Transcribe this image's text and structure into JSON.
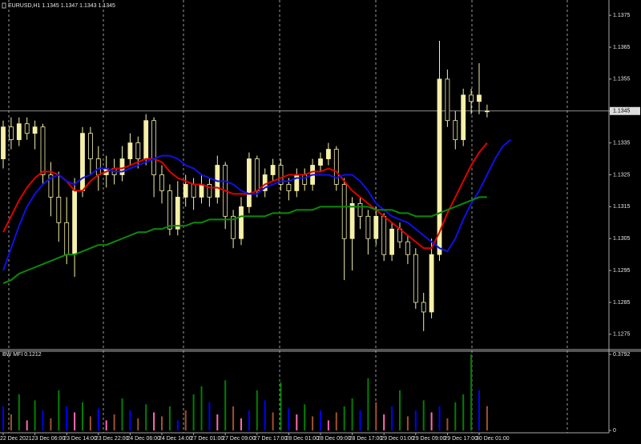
{
  "chart_data": [
    {
      "type": "candlestick",
      "title": "EURUSD,H1  1.1345 1.1347 1.1343 1.1345",
      "categories": [
        "22 Dec 2021",
        null,
        null,
        null,
        "23 Dec 06:00",
        null,
        null,
        null,
        "23 Dec 14:00",
        null,
        null,
        null,
        "23 Dec 22:00",
        null,
        null,
        null,
        "24 Dec 06:00",
        null,
        null,
        null,
        "24 Dec 14:00",
        null,
        null,
        null,
        "27 Dec 01:00",
        null,
        null,
        null,
        "27 Dec 09:00",
        null,
        null,
        null,
        "27 Dec 17:00",
        null,
        null,
        null,
        "28 Dec 01:00",
        null,
        null,
        null,
        "28 Dec 09:00",
        null,
        null,
        null,
        "28 Dec 17:00",
        null,
        null,
        null,
        "29 Dec 01:00",
        null,
        null,
        null,
        "29 Dec 09:00",
        null,
        null,
        null,
        "29 Dec 17:00",
        null,
        null,
        null,
        "30 Dec 01:00",
        null,
        null,
        null,
        null
      ],
      "open": [
        1.133,
        1.134,
        1.1336,
        1.1341,
        1.1338,
        1.134,
        1.1325,
        1.1318,
        1.131,
        1.13,
        1.132,
        1.1338,
        1.133,
        1.1325,
        1.1327,
        1.1325,
        1.133,
        1.1335,
        1.133,
        1.1342,
        1.1325,
        1.132,
        1.1308,
        1.1318,
        1.1322,
        1.1318,
        1.1322,
        1.1318,
        1.1328,
        1.1312,
        1.1305,
        1.1315,
        1.133,
        1.132,
        1.1325,
        1.1328,
        1.1322,
        1.132,
        1.1325,
        1.1322,
        1.1328,
        1.133,
        1.1333,
        1.1322,
        1.1305,
        1.1316,
        1.1312,
        1.1305,
        1.1312,
        1.13,
        1.1308,
        1.1304,
        1.13,
        1.1285,
        1.1282,
        1.13,
        1.1355,
        1.1342,
        1.1336,
        1.135,
        1.1348,
        1.1345,
        null,
        null,
        null
      ],
      "high": [
        1.1342,
        1.1343,
        1.1343,
        1.1343,
        1.1342,
        1.1341,
        1.1329,
        1.1326,
        1.1318,
        1.1324,
        1.134,
        1.134,
        1.1334,
        1.1331,
        1.133,
        1.1334,
        1.1338,
        1.1337,
        1.1344,
        1.1343,
        1.1328,
        1.1322,
        1.1323,
        1.1325,
        1.1324,
        1.1325,
        1.1324,
        1.1331,
        1.1329,
        1.1314,
        1.1318,
        1.1332,
        1.1331,
        1.1327,
        1.133,
        1.133,
        1.1324,
        1.1327,
        1.1327,
        1.133,
        1.1332,
        1.1335,
        1.1334,
        1.1324,
        1.1318,
        1.1318,
        1.1314,
        1.1315,
        1.1313,
        1.131,
        1.131,
        1.1306,
        1.1302,
        1.1288,
        1.1305,
        1.1367,
        1.1358,
        1.1345,
        1.1352,
        1.1352,
        1.136,
        1.1347,
        null,
        null,
        null
      ],
      "low": [
        1.1327,
        1.1333,
        1.1334,
        1.1336,
        1.1333,
        1.1322,
        1.1312,
        1.1304,
        1.1297,
        1.1293,
        1.1318,
        1.1325,
        1.132,
        1.1321,
        1.1322,
        1.1323,
        1.1328,
        1.1327,
        1.1328,
        1.1318,
        1.1316,
        1.1306,
        1.1306,
        1.1315,
        1.1314,
        1.1316,
        1.1315,
        1.1316,
        1.1308,
        1.1302,
        1.1303,
        1.1313,
        1.1318,
        1.1318,
        1.1323,
        1.132,
        1.1317,
        1.1318,
        1.132,
        1.132,
        1.1326,
        1.1328,
        1.132,
        1.1292,
        1.1295,
        1.1308,
        1.13,
        1.1303,
        1.1298,
        1.1298,
        1.1302,
        1.1297,
        1.1283,
        1.1276,
        1.128,
        1.1298,
        1.134,
        1.1333,
        1.1334,
        1.1344,
        1.1344,
        1.1343,
        null,
        null,
        null
      ],
      "close": [
        1.134,
        1.1336,
        1.1341,
        1.1338,
        1.134,
        1.1325,
        1.1318,
        1.131,
        1.13,
        1.132,
        1.1338,
        1.133,
        1.1325,
        1.1327,
        1.1325,
        1.133,
        1.1335,
        1.133,
        1.1342,
        1.1325,
        1.132,
        1.1308,
        1.1318,
        1.1322,
        1.1318,
        1.1322,
        1.1318,
        1.1328,
        1.1312,
        1.1305,
        1.1315,
        1.133,
        1.132,
        1.1325,
        1.1328,
        1.1322,
        1.132,
        1.1325,
        1.1322,
        1.1328,
        1.133,
        1.1333,
        1.1322,
        1.1305,
        1.1316,
        1.1312,
        1.1305,
        1.1312,
        1.13,
        1.1308,
        1.1304,
        1.13,
        1.1285,
        1.1282,
        1.13,
        1.1355,
        1.1342,
        1.1336,
        1.135,
        1.1348,
        1.135,
        1.1345,
        null,
        null,
        null
      ],
      "candle_color": "#f6f0a8",
      "lines": [
        {
          "color": "#e00000",
          "values": [
            1.1307,
            1.1312,
            1.1317,
            1.1321,
            1.1324,
            1.1326,
            1.1326,
            1.1325,
            1.1323,
            1.132,
            1.132,
            1.1323,
            1.1325,
            1.1326,
            1.1327,
            1.1327,
            1.1328,
            1.1329,
            1.133,
            1.133,
            1.1329,
            1.1326,
            1.1324,
            1.1323,
            1.1322,
            1.1322,
            1.1321,
            1.1321,
            1.132,
            1.1319,
            1.1319,
            1.1319,
            1.132,
            1.1322,
            1.1323,
            1.1324,
            1.1325,
            1.1325,
            1.1325,
            1.1326,
            1.1326,
            1.1327,
            1.1326,
            1.1323,
            1.132,
            1.1318,
            1.1316,
            1.1314,
            1.1312,
            1.131,
            1.1308,
            1.1306,
            1.1304,
            1.1302,
            1.1302,
            1.1307,
            1.1313,
            1.1318,
            1.1323,
            1.1328,
            1.1332,
            1.1335,
            null,
            null,
            null
          ]
        },
        {
          "color": "#1010e8",
          "values": [
            1.1295,
            1.1302,
            1.1309,
            1.1315,
            1.1319,
            1.1322,
            1.1324,
            1.1325,
            1.1323,
            1.1322,
            1.1324,
            1.1325,
            1.1327,
            1.1327,
            1.1326,
            1.1326,
            1.1327,
            1.1328,
            1.1329,
            1.133,
            1.1331,
            1.1331,
            1.133,
            1.1328,
            1.1327,
            1.1325,
            1.1324,
            1.1323,
            1.1323,
            1.1322,
            1.132,
            1.1319,
            1.1319,
            1.1321,
            1.1322,
            1.1323,
            1.1323,
            1.1324,
            1.1324,
            1.1325,
            1.1325,
            1.1325,
            1.1324,
            1.1325,
            1.1325,
            1.1323,
            1.132,
            1.1316,
            1.1314,
            1.1312,
            1.1311,
            1.131,
            1.1308,
            1.1306,
            1.1304,
            1.1302,
            1.1301,
            1.1305,
            1.1311,
            1.1316,
            1.132,
            1.1325,
            1.133,
            1.1334,
            1.1336
          ]
        },
        {
          "color": "#0a8a0a",
          "values": [
            1.1291,
            1.1292,
            1.1294,
            1.1295,
            1.1296,
            1.1297,
            1.1298,
            1.1299,
            1.13,
            1.13,
            1.1301,
            1.1302,
            1.1303,
            1.1303,
            1.1304,
            1.1305,
            1.1306,
            1.1307,
            1.1307,
            1.1308,
            1.1308,
            1.1309,
            1.1309,
            1.1309,
            1.131,
            1.131,
            1.1311,
            1.1311,
            1.1311,
            1.1311,
            1.1312,
            1.1312,
            1.1312,
            1.1312,
            1.1313,
            1.1313,
            1.1313,
            1.1314,
            1.1314,
            1.1314,
            1.1315,
            1.1315,
            1.1315,
            1.1315,
            1.1315,
            1.1315,
            1.1315,
            1.1314,
            1.1314,
            1.1314,
            1.1313,
            1.1313,
            1.1312,
            1.1312,
            1.1312,
            1.1313,
            1.1314,
            1.1315,
            1.1316,
            1.1317,
            1.1318,
            1.1318,
            null,
            null,
            null
          ]
        }
      ],
      "last": 1.1345,
      "ylim": [
        1.12702,
        1.13798
      ],
      "yticks": [
        1.1375,
        1.1365,
        1.1355,
        1.1345,
        1.1335,
        1.1325,
        1.1315,
        1.1305,
        1.1295,
        1.1285,
        1.1275
      ]
    },
    {
      "type": "bar",
      "title": "BW MFI 0.1212",
      "values": [
        0.12,
        0.08,
        0.18,
        0.05,
        0.15,
        0.1,
        0.06,
        0.2,
        0.12,
        0.09,
        0.14,
        0.07,
        0.11,
        0.05,
        0.08,
        0.16,
        0.1,
        0.06,
        0.13,
        0.09,
        0.07,
        0.12,
        0.05,
        0.1,
        0.18,
        0.22,
        0.14,
        0.08,
        0.25,
        0.12,
        0.06,
        0.1,
        0.2,
        0.15,
        0.09,
        0.24,
        0.11,
        0.08,
        0.13,
        0.07,
        0.1,
        0.05,
        0.09,
        0.12,
        0.16,
        0.1,
        0.26,
        0.14,
        0.08,
        0.12,
        0.2,
        0.07,
        0.1,
        0.15,
        0.09,
        0.12,
        0.06,
        0.14,
        0.18,
        0.3792,
        0.2,
        0.1212
      ],
      "colors": [
        "blue",
        "sienna",
        "green",
        "hotpink",
        "green",
        "blue",
        "sienna",
        "green",
        "blue",
        "hotpink",
        "green",
        "sienna",
        "blue",
        "hotpink",
        "sienna",
        "green",
        "blue",
        "sienna",
        "green",
        "hotpink",
        "sienna",
        "green",
        "blue",
        "sienna",
        "green",
        "green",
        "blue",
        "hotpink",
        "green",
        "sienna",
        "hotpink",
        "blue",
        "green",
        "blue",
        "sienna",
        "green",
        "blue",
        "hotpink",
        "green",
        "sienna",
        "blue",
        "hotpink",
        "sienna",
        "green",
        "green",
        "blue",
        "green",
        "sienna",
        "hotpink",
        "blue",
        "green",
        "sienna",
        "blue",
        "green",
        "hotpink",
        "blue",
        "sienna",
        "green",
        "green",
        "green",
        "blue",
        "sienna"
      ],
      "ylim": [
        0,
        0.3792
      ],
      "yticks": [
        0.3792,
        0
      ]
    }
  ]
}
